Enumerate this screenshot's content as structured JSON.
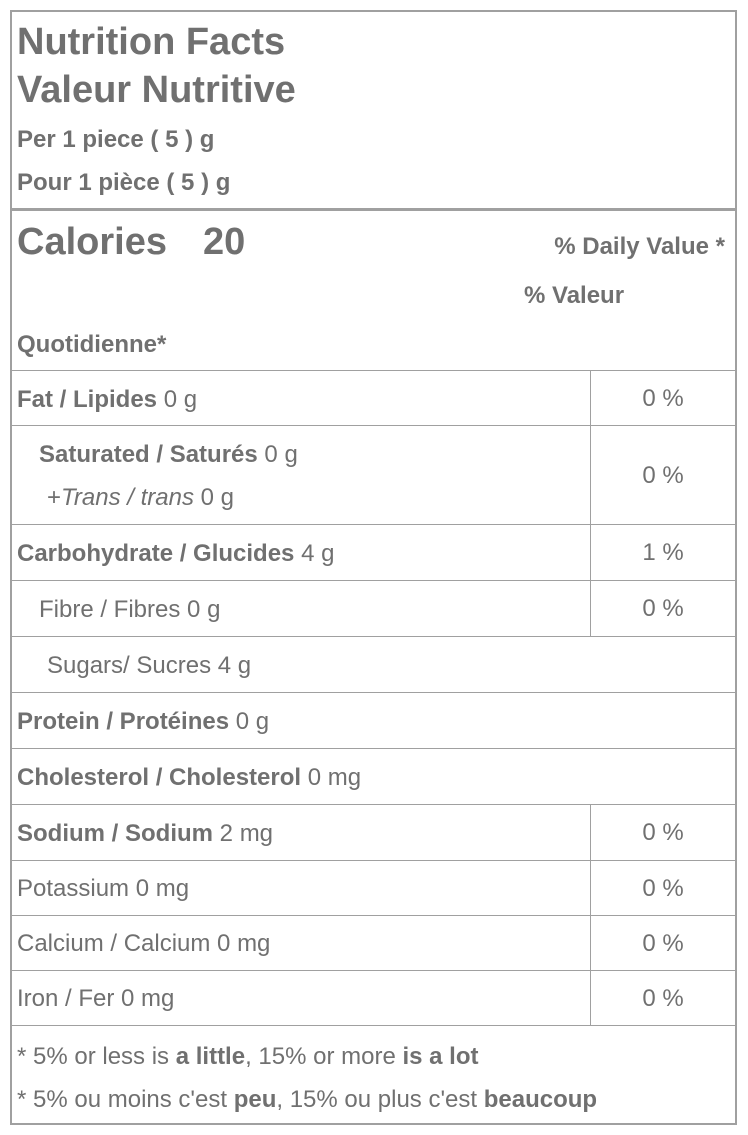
{
  "header": {
    "title": "Nutrition Facts",
    "title_fr": "Valeur Nutritive",
    "serving": "Per 1 piece ( 5 ) g",
    "serving_fr": "Pour 1 pièce ( 5 ) g"
  },
  "calories": {
    "label": "Calories",
    "value": 20
  },
  "daily_value_heading": [
    "% Daily Value *",
    "% Valeur",
    "Quotidienne*"
  ],
  "table": {
    "rows": [
      {
        "name": "Fat / Lipides",
        "amount": "0 g",
        "dv": "0 %"
      },
      {
        "name": "Saturated / Saturés",
        "amount": "0 g",
        "sub": [
          "+",
          "Trans / trans",
          "0 g"
        ],
        "dv": "0 %"
      },
      {
        "name": "Carbohydrate / Glucides",
        "amount": "4 g",
        "dv": "1 %"
      },
      {
        "name": "Fibre / Fibres",
        "amount": "0 g",
        "dv": "0 %"
      },
      {
        "name": "Sugars/ Sucres",
        "amount": "4 g"
      },
      {
        "name": "Protein / Protéines",
        "amount": "0 g"
      },
      {
        "name": "Cholesterol / Cholesterol",
        "amount": "0 mg"
      },
      {
        "name": "Sodium / Sodium",
        "amount": "2 mg",
        "dv": "0 %"
      },
      {
        "name": "Potassium",
        "amount": "0 mg",
        "dv": "0 %"
      },
      {
        "name": "Calcium / Calcium",
        "amount": "0 mg",
        "dv": "0 %"
      },
      {
        "name": "Iron / Fer",
        "amount": "0 mg",
        "dv": "0 %"
      }
    ]
  },
  "footnotes": [
    [
      "* 5% or less is ",
      "a little",
      ", 15% or more ",
      "is a lot"
    ],
    [
      "* 5% ou moins c'est ",
      "peu",
      ", 15% ou plus c'est ",
      "beaucoup"
    ]
  ]
}
